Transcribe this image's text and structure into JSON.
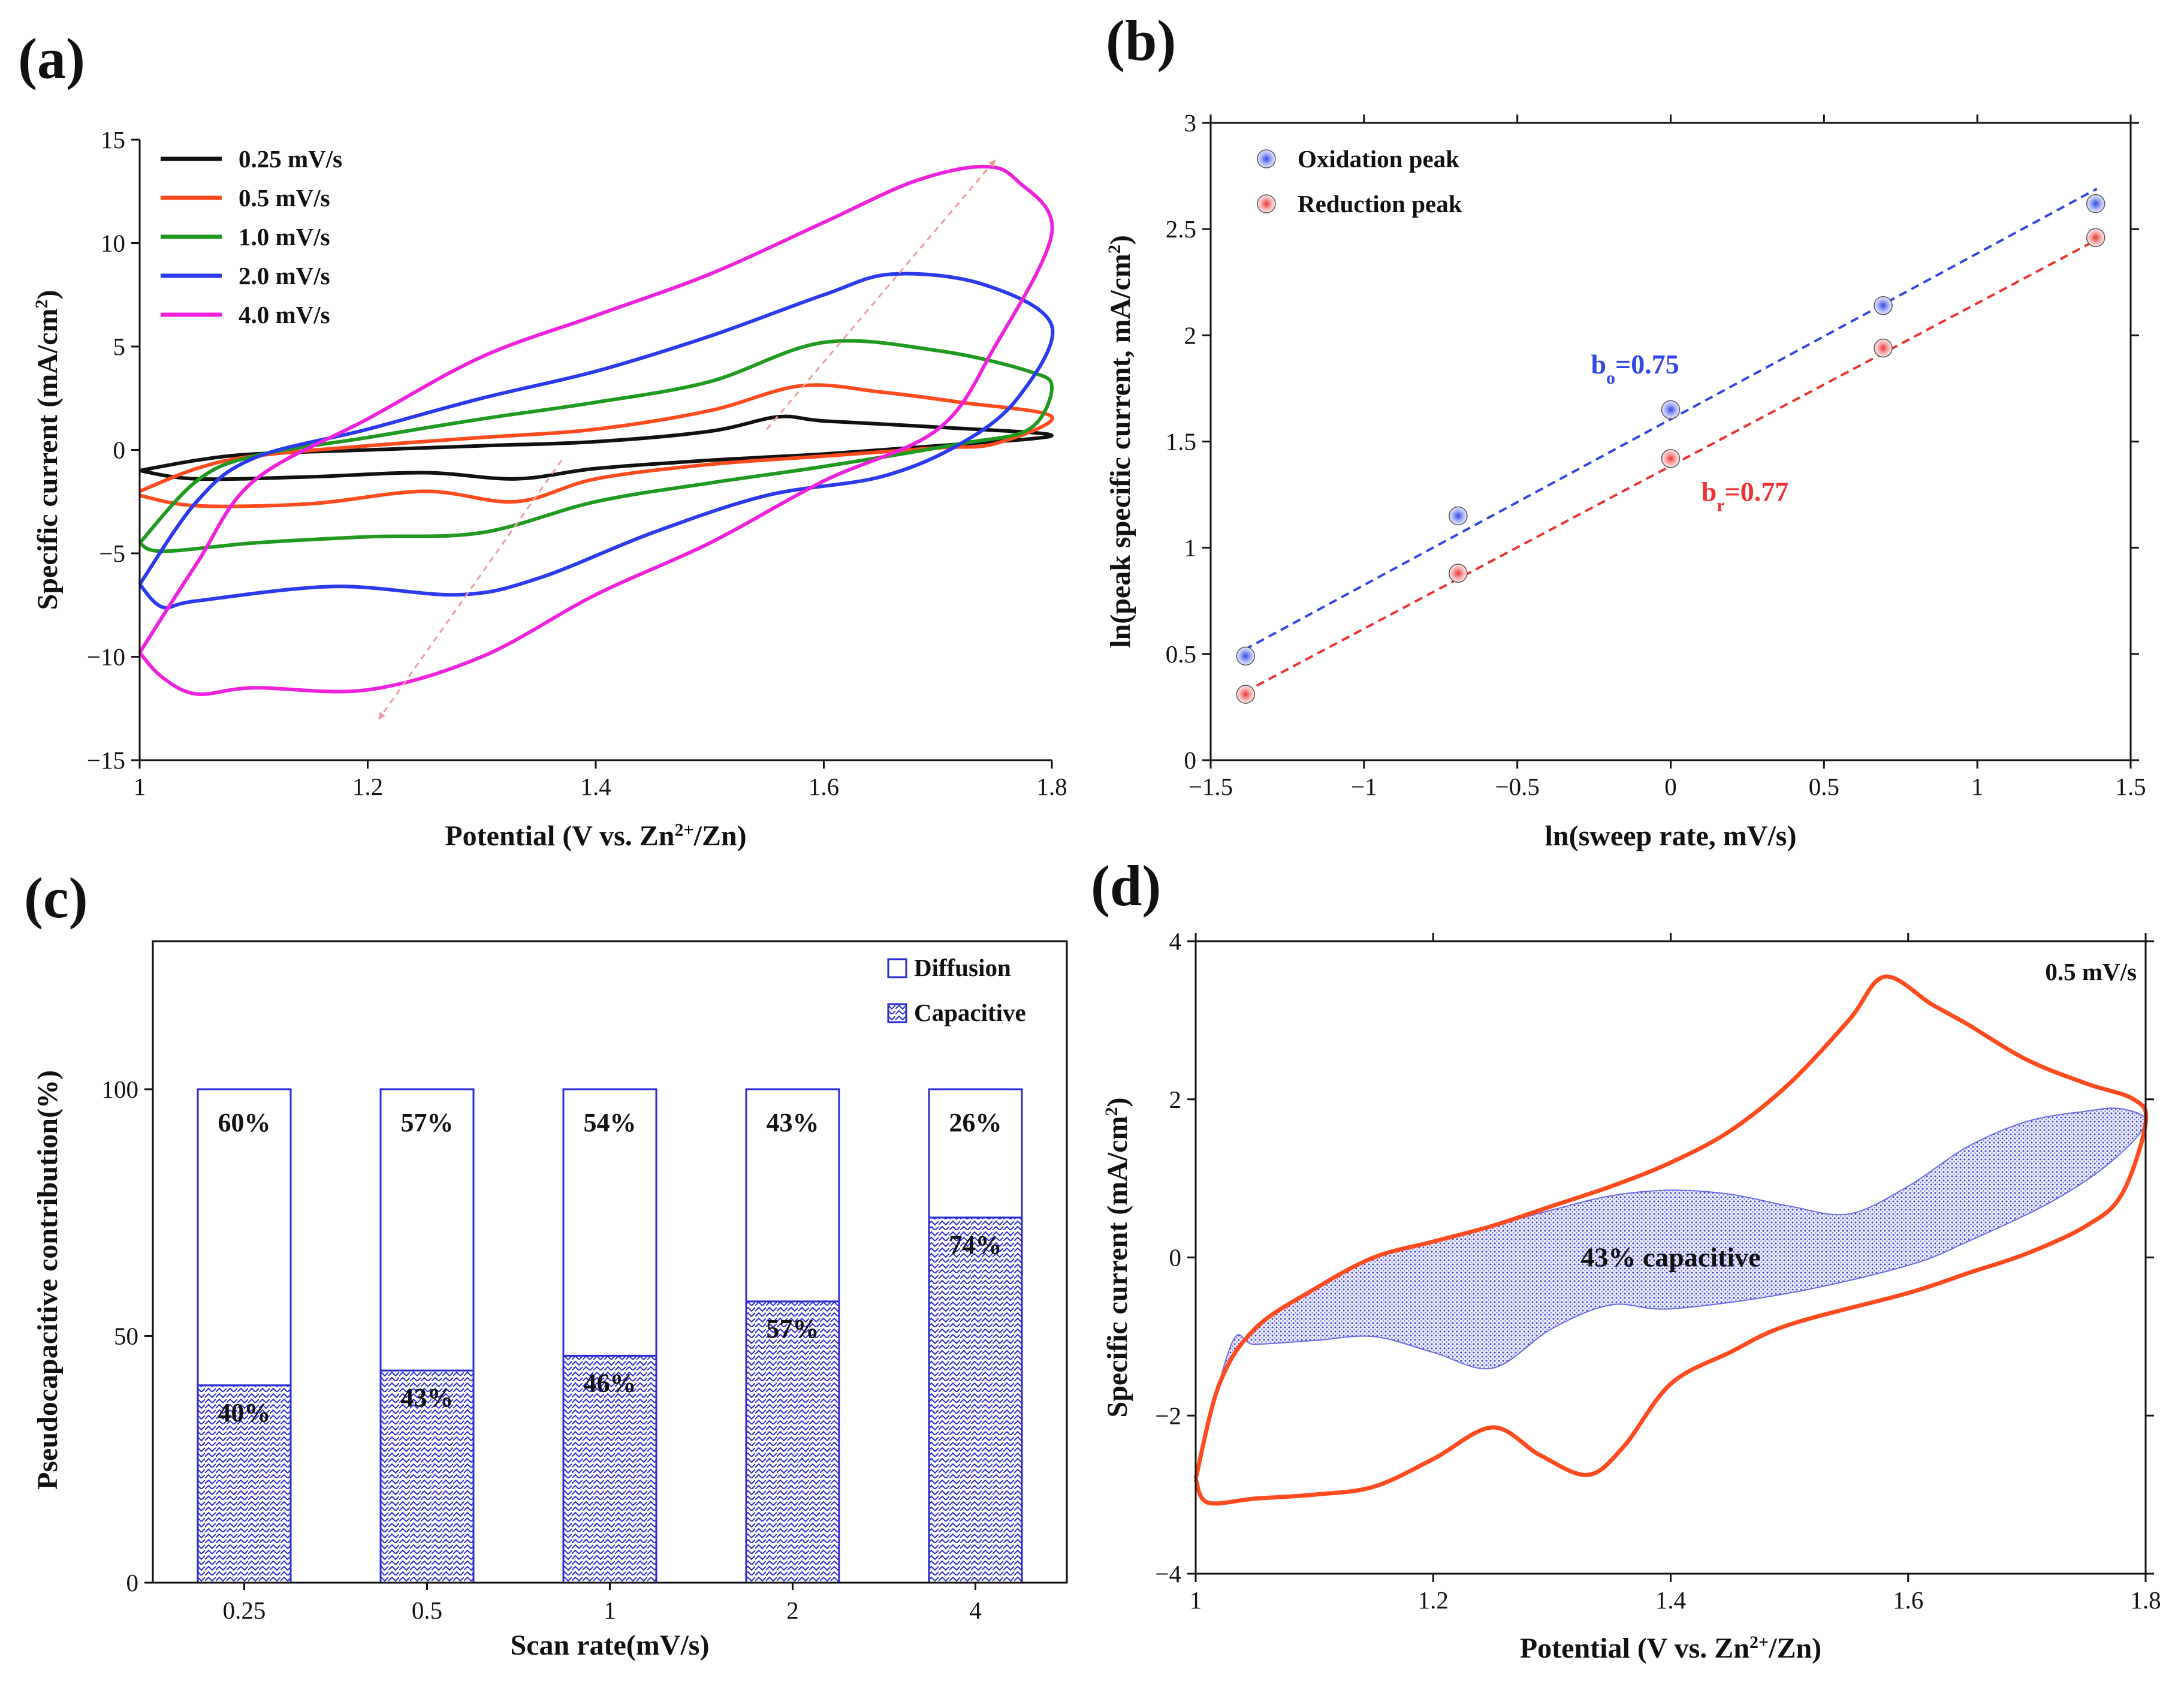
{
  "figure": {
    "panel_labels": {
      "a": "(a)",
      "b": "(b)",
      "c": "(c)",
      "d": "(d)"
    },
    "colors": {
      "black": "#111111",
      "orange": "#ff4b1e",
      "green": "#1f9a1f",
      "blue": "#2b3aeb",
      "magenta": "#ee22dd",
      "salmon": "#f49b9b",
      "pattern_blue": "#2b2bd6",
      "fit_blue": "#3347e8",
      "fit_red": "#ee3333"
    }
  },
  "chart_data": [
    {
      "id": "a",
      "type": "line",
      "xlabel_parts": [
        "Potential (V vs. Zn",
        "2+",
        "/Zn)"
      ],
      "ylabel_parts": [
        "Specific current (mA/cm",
        "2",
        ")"
      ],
      "xlim": [
        1,
        1.8
      ],
      "ylim": [
        -15,
        15
      ],
      "xticks": [
        1,
        1.2,
        1.4,
        1.6,
        1.8
      ],
      "xtick_labels": [
        "1",
        "1.2",
        "1.4",
        "1.6",
        "1.8"
      ],
      "yticks": [
        -15,
        -10,
        -5,
        0,
        5,
        10,
        15
      ],
      "ytick_labels": [
        "−15",
        "−10",
        "−5",
        "0",
        "5",
        "10",
        "15"
      ],
      "legend_position": "top-left",
      "series": [
        {
          "name": "0.25 mV/s",
          "color_key": "black",
          "anodic": [
            [
              1.0,
              -1.0
            ],
            [
              1.05,
              -0.5
            ],
            [
              1.1,
              -0.2
            ],
            [
              1.2,
              0.0
            ],
            [
              1.3,
              0.2
            ],
            [
              1.4,
              0.4
            ],
            [
              1.5,
              0.9
            ],
            [
              1.56,
              1.6
            ],
            [
              1.6,
              1.4
            ],
            [
              1.7,
              1.1
            ],
            [
              1.8,
              0.7
            ]
          ],
          "cathodic": [
            [
              1.8,
              0.7
            ],
            [
              1.7,
              0.2
            ],
            [
              1.6,
              -0.2
            ],
            [
              1.5,
              -0.5
            ],
            [
              1.4,
              -0.9
            ],
            [
              1.33,
              -1.4
            ],
            [
              1.25,
              -1.1
            ],
            [
              1.15,
              -1.3
            ],
            [
              1.05,
              -1.4
            ],
            [
              1.0,
              -1.0
            ]
          ]
        },
        {
          "name": "0.5 mV/s",
          "color_key": "orange",
          "anodic": [
            [
              1.0,
              -2.0
            ],
            [
              1.05,
              -0.9
            ],
            [
              1.1,
              -0.3
            ],
            [
              1.2,
              0.2
            ],
            [
              1.3,
              0.6
            ],
            [
              1.4,
              1.0
            ],
            [
              1.5,
              1.9
            ],
            [
              1.58,
              3.1
            ],
            [
              1.65,
              2.8
            ],
            [
              1.72,
              2.3
            ],
            [
              1.8,
              1.6
            ]
          ],
          "cathodic": [
            [
              1.8,
              1.6
            ],
            [
              1.75,
              0.3
            ],
            [
              1.7,
              0.1
            ],
            [
              1.6,
              -0.3
            ],
            [
              1.5,
              -0.7
            ],
            [
              1.4,
              -1.4
            ],
            [
              1.33,
              -2.5
            ],
            [
              1.25,
              -2.0
            ],
            [
              1.15,
              -2.6
            ],
            [
              1.05,
              -2.7
            ],
            [
              1.0,
              -2.2
            ]
          ]
        },
        {
          "name": "1.0 mV/s",
          "color_key": "green",
          "anodic": [
            [
              1.0,
              -4.5
            ],
            [
              1.05,
              -1.5
            ],
            [
              1.1,
              -0.3
            ],
            [
              1.2,
              0.6
            ],
            [
              1.3,
              1.5
            ],
            [
              1.4,
              2.3
            ],
            [
              1.5,
              3.3
            ],
            [
              1.6,
              5.2
            ],
            [
              1.7,
              4.8
            ],
            [
              1.78,
              3.8
            ],
            [
              1.8,
              3.0
            ]
          ],
          "cathodic": [
            [
              1.8,
              3.0
            ],
            [
              1.78,
              1.0
            ],
            [
              1.72,
              0.3
            ],
            [
              1.6,
              -0.8
            ],
            [
              1.5,
              -1.6
            ],
            [
              1.4,
              -2.5
            ],
            [
              1.3,
              -4.0
            ],
            [
              1.2,
              -4.2
            ],
            [
              1.1,
              -4.5
            ],
            [
              1.02,
              -4.9
            ],
            [
              1.0,
              -4.5
            ]
          ]
        },
        {
          "name": "2.0 mV/s",
          "color_key": "blue",
          "anodic": [
            [
              1.0,
              -6.5
            ],
            [
              1.05,
              -2.5
            ],
            [
              1.1,
              -0.4
            ],
            [
              1.2,
              1.0
            ],
            [
              1.3,
              2.5
            ],
            [
              1.4,
              3.8
            ],
            [
              1.5,
              5.5
            ],
            [
              1.6,
              7.5
            ],
            [
              1.66,
              8.5
            ],
            [
              1.74,
              8.0
            ],
            [
              1.8,
              6.0
            ]
          ],
          "cathodic": [
            [
              1.8,
              6.0
            ],
            [
              1.77,
              2.5
            ],
            [
              1.72,
              0.3
            ],
            [
              1.65,
              -1.3
            ],
            [
              1.55,
              -2.2
            ],
            [
              1.45,
              -4.0
            ],
            [
              1.35,
              -6.2
            ],
            [
              1.28,
              -7.0
            ],
            [
              1.17,
              -6.6
            ],
            [
              1.05,
              -7.3
            ],
            [
              1.02,
              -7.6
            ],
            [
              1.0,
              -6.5
            ]
          ]
        },
        {
          "name": "4.0 mV/s",
          "color_key": "magenta",
          "anodic": [
            [
              1.0,
              -9.8
            ],
            [
              1.05,
              -5.5
            ],
            [
              1.1,
              -1.5
            ],
            [
              1.2,
              1.5
            ],
            [
              1.3,
              4.5
            ],
            [
              1.4,
              6.5
            ],
            [
              1.5,
              8.5
            ],
            [
              1.6,
              11.0
            ],
            [
              1.68,
              13.0
            ],
            [
              1.74,
              13.7
            ],
            [
              1.77,
              13.0
            ],
            [
              1.8,
              10.5
            ]
          ],
          "cathodic": [
            [
              1.8,
              10.5
            ],
            [
              1.75,
              5.0
            ],
            [
              1.7,
              1.0
            ],
            [
              1.6,
              -1.5
            ],
            [
              1.5,
              -4.5
            ],
            [
              1.4,
              -7.0
            ],
            [
              1.3,
              -10.0
            ],
            [
              1.2,
              -11.6
            ],
            [
              1.1,
              -11.5
            ],
            [
              1.05,
              -11.8
            ],
            [
              1.02,
              -11.0
            ],
            [
              1.0,
              -9.8
            ]
          ]
        }
      ],
      "arrows": [
        {
          "from": [
            1.55,
            1.0
          ],
          "to": [
            1.75,
            14.0
          ]
        },
        {
          "from": [
            1.37,
            -0.5
          ],
          "to": [
            1.21,
            -13.0
          ]
        }
      ]
    },
    {
      "id": "b",
      "type": "scatter",
      "xlabel": "ln(sweep rate, mV/s)",
      "ylabel_parts": [
        "ln(peak specific current, mA/cm",
        "2",
        ")"
      ],
      "xlim": [
        -1.5,
        1.5
      ],
      "ylim": [
        0,
        3
      ],
      "xticks": [
        -1.5,
        -1,
        -0.5,
        0,
        0.5,
        1,
        1.5
      ],
      "xtick_labels": [
        "−1.5",
        "−1",
        "−0.5",
        "0",
        "0.5",
        "1",
        "1.5"
      ],
      "yticks": [
        0,
        0.5,
        1,
        1.5,
        2,
        2.5,
        3
      ],
      "ytick_labels": [
        "0",
        "0.5",
        "1",
        "1.5",
        "2",
        "2.5",
        "3"
      ],
      "legend_position": "top-left",
      "series": [
        {
          "name": "Oxidation peak",
          "color_key": "fit_blue",
          "x": [
            -1.386,
            -0.693,
            0,
            0.693,
            1.386
          ],
          "y": [
            0.49,
            1.15,
            1.65,
            2.14,
            2.62
          ],
          "fit": {
            "x": [
              -1.39,
              1.39
            ],
            "y": [
              0.52,
              2.69
            ]
          }
        },
        {
          "name": "Reduction peak",
          "color_key": "fit_red",
          "x": [
            -1.386,
            -0.693,
            0,
            0.693,
            1.386
          ],
          "y": [
            0.31,
            0.88,
            1.42,
            1.94,
            2.46
          ],
          "fit": {
            "x": [
              -1.39,
              1.39
            ],
            "y": [
              0.32,
              2.45
            ]
          }
        }
      ],
      "annotations": [
        {
          "base": "b",
          "sub": "o",
          "rest": "=0.75",
          "x": -0.26,
          "y": 1.82,
          "color_key": "fit_blue"
        },
        {
          "base": "b",
          "sub": "r",
          "rest": "=0.77",
          "x": 0.1,
          "y": 1.22,
          "color_key": "fit_red"
        }
      ]
    },
    {
      "id": "c",
      "type": "bar",
      "xlabel": "Scan rate(mV/s)",
      "ylabel": "Pseudocapacitive contribution(%)",
      "ylim": [
        0,
        130
      ],
      "yticks": [
        0,
        50,
        100
      ],
      "ytick_labels": [
        "0",
        "50",
        "100"
      ],
      "categories": [
        "0.25",
        "0.5",
        "1",
        "2",
        "4"
      ],
      "series": [
        {
          "name": "Capacitive",
          "values": [
            40,
            43,
            46,
            57,
            74
          ],
          "labels": [
            "40%",
            "43%",
            "46%",
            "57%",
            "74%"
          ]
        },
        {
          "name": "Diffusion",
          "values": [
            60,
            57,
            54,
            43,
            26
          ],
          "labels": [
            "60%",
            "57%",
            "54%",
            "43%",
            "26%"
          ]
        }
      ],
      "legend": [
        "Diffusion",
        "Capacitive"
      ],
      "legend_position": "top-right"
    },
    {
      "id": "d",
      "type": "area",
      "xlabel_parts": [
        "Potential (V vs. Zn",
        "2+",
        "/Zn)"
      ],
      "ylabel_parts": [
        "Specific current (mA/cm",
        "2",
        ")"
      ],
      "xlim": [
        1,
        1.8
      ],
      "ylim": [
        -4,
        4
      ],
      "xticks": [
        1,
        1.2,
        1.4,
        1.6,
        1.8
      ],
      "xtick_labels": [
        "1",
        "1.2",
        "1.4",
        "1.6",
        "1.8"
      ],
      "yticks": [
        -4,
        -2,
        0,
        2,
        4
      ],
      "ytick_labels": [
        "−4",
        "−2",
        "0",
        "2",
        "4"
      ],
      "scan_rate_label": "0.5 mV/s",
      "area_label": "43% capacitive",
      "cv_curve": {
        "anodic": [
          [
            1.0,
            -2.8
          ],
          [
            1.02,
            -1.6
          ],
          [
            1.05,
            -0.9
          ],
          [
            1.1,
            -0.4
          ],
          [
            1.15,
            0.0
          ],
          [
            1.2,
            0.2
          ],
          [
            1.25,
            0.4
          ],
          [
            1.3,
            0.65
          ],
          [
            1.35,
            0.9
          ],
          [
            1.4,
            1.2
          ],
          [
            1.45,
            1.6
          ],
          [
            1.5,
            2.2
          ],
          [
            1.55,
            3.0
          ],
          [
            1.58,
            3.55
          ],
          [
            1.62,
            3.2
          ],
          [
            1.65,
            2.95
          ],
          [
            1.7,
            2.5
          ],
          [
            1.75,
            2.2
          ],
          [
            1.79,
            2.0
          ],
          [
            1.8,
            1.7
          ]
        ],
        "cathodic": [
          [
            1.8,
            1.7
          ],
          [
            1.78,
            0.8
          ],
          [
            1.75,
            0.4
          ],
          [
            1.7,
            0.05
          ],
          [
            1.65,
            -0.2
          ],
          [
            1.6,
            -0.45
          ],
          [
            1.5,
            -0.85
          ],
          [
            1.45,
            -1.2
          ],
          [
            1.4,
            -1.6
          ],
          [
            1.36,
            -2.4
          ],
          [
            1.33,
            -2.75
          ],
          [
            1.29,
            -2.5
          ],
          [
            1.25,
            -2.15
          ],
          [
            1.2,
            -2.55
          ],
          [
            1.15,
            -2.9
          ],
          [
            1.1,
            -3.0
          ],
          [
            1.05,
            -3.05
          ],
          [
            1.01,
            -3.1
          ],
          [
            1.0,
            -2.8
          ]
        ]
      },
      "capacitive_area": {
        "upper": [
          [
            1.0,
            -2.8
          ],
          [
            1.02,
            -1.6
          ],
          [
            1.05,
            -0.9
          ],
          [
            1.1,
            -0.4
          ],
          [
            1.15,
            0.0
          ],
          [
            1.2,
            0.2
          ],
          [
            1.25,
            0.4
          ],
          [
            1.3,
            0.6
          ],
          [
            1.35,
            0.78
          ],
          [
            1.4,
            0.85
          ],
          [
            1.45,
            0.8
          ],
          [
            1.5,
            0.65
          ],
          [
            1.55,
            0.55
          ],
          [
            1.6,
            0.9
          ],
          [
            1.65,
            1.4
          ],
          [
            1.7,
            1.72
          ],
          [
            1.75,
            1.85
          ],
          [
            1.78,
            1.88
          ],
          [
            1.8,
            1.7
          ]
        ],
        "lower": [
          [
            1.8,
            1.7
          ],
          [
            1.77,
            1.2
          ],
          [
            1.72,
            0.7
          ],
          [
            1.65,
            0.2
          ],
          [
            1.6,
            -0.1
          ],
          [
            1.5,
            -0.45
          ],
          [
            1.4,
            -0.65
          ],
          [
            1.35,
            -0.6
          ],
          [
            1.3,
            -0.9
          ],
          [
            1.25,
            -1.4
          ],
          [
            1.2,
            -1.2
          ],
          [
            1.15,
            -1.0
          ],
          [
            1.1,
            -1.05
          ],
          [
            1.05,
            -1.1
          ],
          [
            1.03,
            -1.1
          ],
          [
            1.0,
            -2.8
          ]
        ]
      }
    }
  ]
}
